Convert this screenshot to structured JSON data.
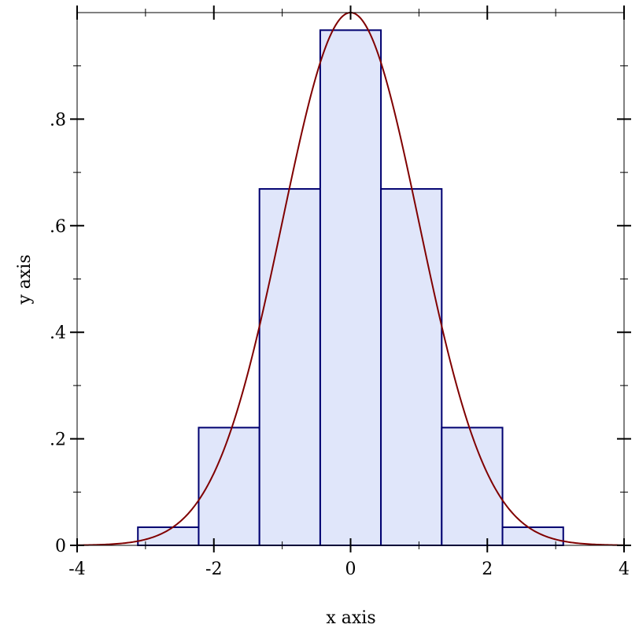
{
  "chart_data": {
    "type": "bar",
    "subtype": "histogram-with-curve",
    "xlabel": "x axis",
    "ylabel": "y axis",
    "xlim": [
      -4,
      4
    ],
    "ylim": [
      0,
      1
    ],
    "x_ticks": [
      {
        "value": -4,
        "label": "-4"
      },
      {
        "value": -2,
        "label": "-2"
      },
      {
        "value": 0,
        "label": "0"
      },
      {
        "value": 2,
        "label": "2"
      },
      {
        "value": 4,
        "label": "4"
      }
    ],
    "x_minor_ticks": [
      -3,
      -1,
      1,
      3
    ],
    "y_ticks": [
      {
        "value": 0,
        "label": "0"
      },
      {
        "value": 0.2,
        "label": ".2"
      },
      {
        "value": 0.4,
        "label": ".4"
      },
      {
        "value": 0.6,
        "label": ".6"
      },
      {
        "value": 0.8,
        "label": ".8"
      }
    ],
    "y_minor_ticks": [
      0.1,
      0.3,
      0.5,
      0.7,
      0.9
    ],
    "bins": [
      {
        "x0": -4.0,
        "x1": -3.111,
        "value": 0.0
      },
      {
        "x0": -3.111,
        "x1": -2.222,
        "value": 0.034
      },
      {
        "x0": -2.222,
        "x1": -1.333,
        "value": 0.221
      },
      {
        "x0": -1.333,
        "x1": -0.444,
        "value": 0.669
      },
      {
        "x0": -0.444,
        "x1": 0.444,
        "value": 0.967
      },
      {
        "x0": 0.444,
        "x1": 1.333,
        "value": 0.669
      },
      {
        "x0": 1.333,
        "x1": 2.222,
        "value": 0.221
      },
      {
        "x0": 2.222,
        "x1": 3.111,
        "value": 0.034
      },
      {
        "x0": 3.111,
        "x1": 4.0,
        "value": 0.0
      }
    ],
    "curve": {
      "function": "exp(-x^2/2)",
      "peak": 1.0
    },
    "colors": {
      "bar_fill": "#e0e6fa",
      "bar_stroke": "#000070",
      "curve": "#800000",
      "axis": "#000000"
    },
    "grid": false
  }
}
